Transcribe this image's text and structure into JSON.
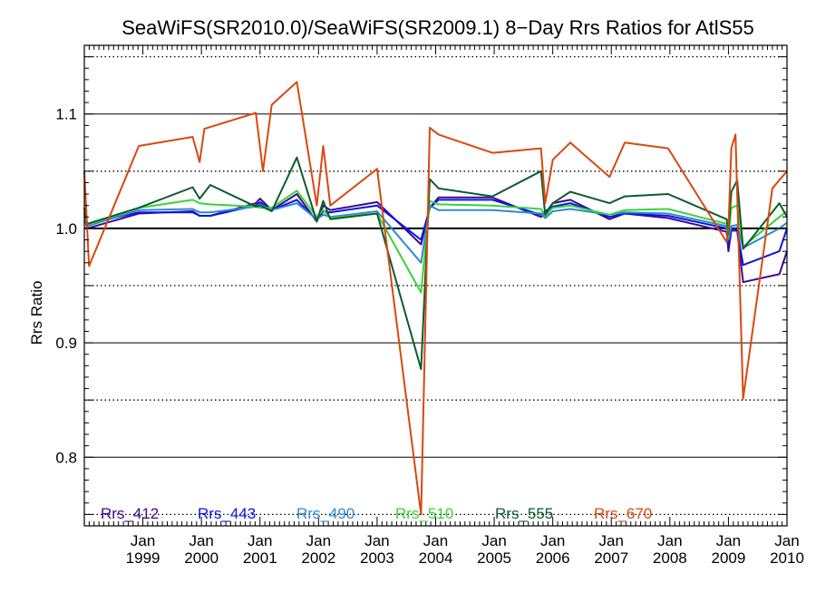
{
  "chart_data": {
    "type": "line",
    "title": "SeaWiFS(SR2010.0)/SeaWiFS(SR2009.1) 8−Day Rrs Ratios for AtlS55",
    "ylabel": "Rrs Ratio",
    "xlabel": "",
    "xlim": [
      1998.0,
      2010.0
    ],
    "ylim": [
      0.74,
      1.16
    ],
    "y_ticks": [
      {
        "value": 0.8,
        "label": "0.8"
      },
      {
        "value": 0.9,
        "label": "0.9"
      },
      {
        "value": 1.0,
        "label": "1.0"
      },
      {
        "value": 1.1,
        "label": "1.1"
      }
    ],
    "dotted_gridlines": [
      0.75,
      0.85,
      0.95,
      1.05,
      1.15
    ],
    "reference_line": 1.0,
    "x_ticks": [
      {
        "value": 1999.0,
        "line1": "Jan",
        "line2": "1999"
      },
      {
        "value": 2000.0,
        "line1": "Jan",
        "line2": "2000"
      },
      {
        "value": 2001.0,
        "line1": "Jan",
        "line2": "2001"
      },
      {
        "value": 2002.0,
        "line1": "Jan",
        "line2": "2002"
      },
      {
        "value": 2003.0,
        "line1": "Jan",
        "line2": "2003"
      },
      {
        "value": 2004.0,
        "line1": "Jan",
        "line2": "2004"
      },
      {
        "value": 2005.0,
        "line1": "Jan",
        "line2": "2005"
      },
      {
        "value": 2006.0,
        "line1": "Jan",
        "line2": "2006"
      },
      {
        "value": 2007.0,
        "line1": "Jan",
        "line2": "2007"
      },
      {
        "value": 2008.0,
        "line1": "Jan",
        "line2": "2008"
      },
      {
        "value": 2009.0,
        "line1": "Jan",
        "line2": "2009"
      },
      {
        "value": 2010.0,
        "line1": "Jan",
        "line2": "2010"
      }
    ],
    "legend_placement": "bottom-left, inside plot",
    "series": [
      {
        "name": "Rrs_412",
        "color": "#3d0a91",
        "x": [
          1998.0,
          1998.05,
          1998.93,
          1999.85,
          1999.97,
          2000.15,
          2000.93,
          2001.0,
          2001.2,
          2001.63,
          2001.97,
          2002.08,
          2002.2,
          2003.0,
          2003.75,
          2003.9,
          2004.05,
          2004.97,
          2005.8,
          2005.87,
          2006.0,
          2006.3,
          2006.97,
          2007.23,
          2007.97,
          2008.97,
          2009.0,
          2009.05,
          2009.15,
          2009.25,
          2009.87,
          2010.0
        ],
        "y": [
          1.01,
          1.0,
          1.013,
          1.015,
          1.011,
          1.011,
          1.022,
          1.026,
          1.016,
          1.03,
          1.006,
          1.02,
          1.016,
          1.023,
          0.986,
          1.018,
          1.027,
          1.027,
          1.01,
          1.013,
          1.022,
          1.025,
          1.008,
          1.013,
          1.009,
          0.997,
          0.98,
          0.998,
          0.998,
          0.953,
          0.96,
          0.98
        ]
      },
      {
        "name": "Rrs_443",
        "color": "#0a14e6",
        "x": [
          1998.0,
          1998.05,
          1998.93,
          1999.85,
          1999.97,
          2000.15,
          2000.93,
          2001.0,
          2001.2,
          2001.63,
          2001.97,
          2002.08,
          2002.2,
          2003.0,
          2003.75,
          2003.9,
          2004.05,
          2004.97,
          2005.8,
          2005.87,
          2006.0,
          2006.3,
          2006.97,
          2007.23,
          2007.97,
          2008.97,
          2009.0,
          2009.05,
          2009.15,
          2009.25,
          2009.87,
          2010.0
        ],
        "y": [
          1.01,
          1.004,
          1.014,
          1.014,
          1.011,
          1.011,
          1.02,
          1.023,
          1.016,
          1.025,
          1.007,
          1.015,
          1.014,
          1.02,
          0.99,
          1.018,
          1.025,
          1.025,
          1.012,
          1.015,
          1.019,
          1.022,
          1.01,
          1.013,
          1.011,
          1.0,
          0.985,
          1.0,
          0.999,
          0.968,
          0.98,
          1.0
        ]
      },
      {
        "name": "Rrs_490",
        "color": "#2f8ad0",
        "x": [
          1998.0,
          1998.05,
          1998.93,
          1999.85,
          1999.97,
          2000.15,
          2000.93,
          2001.0,
          2001.2,
          2001.63,
          2001.97,
          2002.08,
          2002.2,
          2003.0,
          2003.75,
          2003.9,
          2004.05,
          2004.97,
          2005.8,
          2005.87,
          2006.0,
          2006.3,
          2006.97,
          2007.23,
          2007.97,
          2008.97,
          2009.0,
          2009.05,
          2009.15,
          2009.25,
          2009.87,
          2010.0
        ],
        "y": [
          1.012,
          1.002,
          1.016,
          1.017,
          1.014,
          1.014,
          1.019,
          1.021,
          1.016,
          1.022,
          1.008,
          1.012,
          1.01,
          1.015,
          0.97,
          1.02,
          1.016,
          1.016,
          1.013,
          1.009,
          1.015,
          1.017,
          1.012,
          1.014,
          1.013,
          1.002,
          0.99,
          1.002,
          1.003,
          0.983,
          1.0,
          1.005
        ]
      },
      {
        "name": "Rrs_510",
        "color": "#38d438",
        "x": [
          1998.0,
          1998.05,
          1998.93,
          1999.85,
          1999.97,
          2000.15,
          2000.93,
          2001.0,
          2001.2,
          2001.63,
          2001.97,
          2002.08,
          2002.2,
          2003.0,
          2003.75,
          2003.9,
          2004.05,
          2004.97,
          2005.8,
          2005.87,
          2006.0,
          2006.3,
          2006.97,
          2007.23,
          2007.97,
          2008.97,
          2009.0,
          2009.05,
          2009.15,
          2009.25,
          2009.87,
          2010.0
        ],
        "y": [
          1.014,
          1.003,
          1.018,
          1.025,
          1.022,
          1.021,
          1.019,
          1.018,
          1.018,
          1.033,
          1.01,
          1.016,
          1.009,
          1.013,
          0.944,
          1.024,
          1.021,
          1.02,
          1.017,
          1.011,
          1.018,
          1.02,
          1.012,
          1.016,
          1.017,
          1.004,
          0.993,
          1.018,
          1.02,
          0.984,
          1.01,
          1.015
        ]
      },
      {
        "name": "Rrs_555",
        "color": "#0c5c2c",
        "x": [
          1998.0,
          1998.05,
          1998.93,
          1999.85,
          1999.97,
          2000.15,
          2000.93,
          2001.0,
          2001.2,
          2001.63,
          2001.97,
          2002.08,
          2002.2,
          2003.0,
          2003.75,
          2003.9,
          2004.05,
          2004.97,
          2005.8,
          2005.87,
          2006.0,
          2006.3,
          2006.97,
          2007.23,
          2007.97,
          2008.97,
          2009.0,
          2009.05,
          2009.15,
          2009.25,
          2009.87,
          2010.0
        ],
        "y": [
          1.018,
          1.004,
          1.018,
          1.036,
          1.026,
          1.038,
          1.019,
          1.02,
          1.015,
          1.062,
          1.006,
          1.024,
          1.008,
          1.013,
          0.877,
          1.043,
          1.035,
          1.028,
          1.05,
          1.012,
          1.022,
          1.032,
          1.022,
          1.028,
          1.03,
          1.008,
          0.995,
          1.032,
          1.042,
          0.982,
          1.022,
          1.01
        ]
      },
      {
        "name": "Rrs_670",
        "color": "#d9480f",
        "x": [
          1998.0,
          1998.08,
          1998.93,
          1999.85,
          1999.97,
          2000.05,
          2000.93,
          2001.05,
          2001.2,
          2001.63,
          2001.97,
          2002.08,
          2002.2,
          2003.0,
          2003.75,
          2003.9,
          2004.05,
          2004.97,
          2005.8,
          2005.87,
          2006.0,
          2006.3,
          2006.97,
          2007.23,
          2007.97,
          2008.97,
          2009.0,
          2009.05,
          2009.12,
          2009.25,
          2009.75,
          2010.0
        ],
        "y": [
          1.05,
          0.967,
          1.072,
          1.08,
          1.058,
          1.087,
          1.101,
          1.05,
          1.108,
          1.128,
          1.02,
          1.072,
          1.02,
          1.052,
          0.75,
          1.088,
          1.082,
          1.066,
          1.07,
          1.022,
          1.06,
          1.075,
          1.045,
          1.075,
          1.07,
          0.988,
          1.0,
          1.07,
          1.082,
          0.851,
          1.035,
          1.05
        ]
      }
    ]
  }
}
